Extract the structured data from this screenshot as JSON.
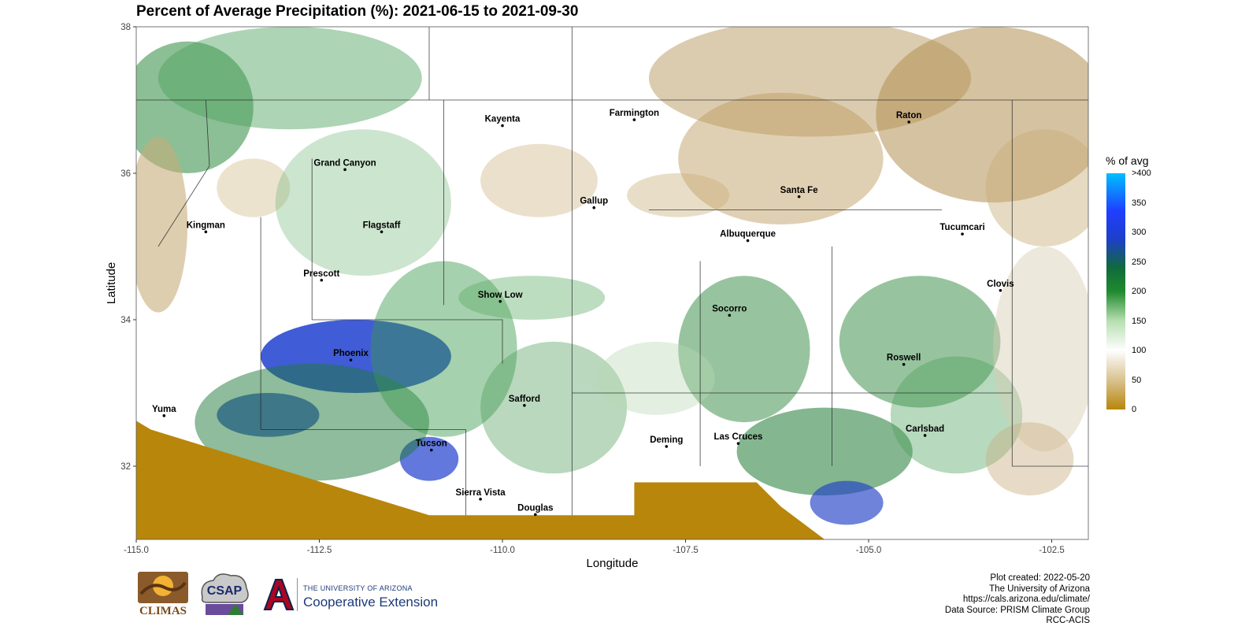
{
  "title": "Percent of Average Precipitation (%): 2021-06-15 to 2021-09-30",
  "chart_data": {
    "type": "heatmap",
    "title": "Percent of Average Precipitation (%): 2021-06-15 to 2021-09-30",
    "xlabel": "Longitude",
    "ylabel": "Latitude",
    "xlim": [
      -115.0,
      -102.0
    ],
    "ylim": [
      31.0,
      38.0
    ],
    "x_ticks": [
      "-115.0",
      "-112.5",
      "-110.0",
      "-107.5",
      "-105.0",
      "-102.5"
    ],
    "x_tick_values": [
      -115.0,
      -112.5,
      -110.0,
      -107.5,
      -105.0,
      -102.5
    ],
    "y_ticks": [
      "32",
      "34",
      "36",
      "38"
    ],
    "y_tick_values": [
      32,
      34,
      36,
      38
    ],
    "cities": [
      {
        "name": "Kayenta",
        "lon": -110.0,
        "lat": 36.65
      },
      {
        "name": "Farmington",
        "lon": -108.2,
        "lat": 36.73
      },
      {
        "name": "Raton",
        "lon": -104.45,
        "lat": 36.7
      },
      {
        "name": "Grand Canyon",
        "lon": -112.15,
        "lat": 36.05
      },
      {
        "name": "Santa Fe",
        "lon": -105.95,
        "lat": 35.68
      },
      {
        "name": "Gallup",
        "lon": -108.75,
        "lat": 35.53
      },
      {
        "name": "Kingman",
        "lon": -114.05,
        "lat": 35.2
      },
      {
        "name": "Flagstaff",
        "lon": -111.65,
        "lat": 35.2
      },
      {
        "name": "Albuquerque",
        "lon": -106.65,
        "lat": 35.08
      },
      {
        "name": "Tucumcari",
        "lon": -103.72,
        "lat": 35.17
      },
      {
        "name": "Prescott",
        "lon": -112.47,
        "lat": 34.54
      },
      {
        "name": "Clovis",
        "lon": -103.2,
        "lat": 34.4
      },
      {
        "name": "Show Low",
        "lon": -110.03,
        "lat": 34.25
      },
      {
        "name": "Socorro",
        "lon": -106.9,
        "lat": 34.06
      },
      {
        "name": "Phoenix",
        "lon": -112.07,
        "lat": 33.45
      },
      {
        "name": "Roswell",
        "lon": -104.52,
        "lat": 33.39
      },
      {
        "name": "Yuma",
        "lon": -114.62,
        "lat": 32.69
      },
      {
        "name": "Safford",
        "lon": -109.7,
        "lat": 32.83
      },
      {
        "name": "Carlsbad",
        "lon": -104.23,
        "lat": 32.42
      },
      {
        "name": "Tucson",
        "lon": -110.97,
        "lat": 32.22
      },
      {
        "name": "Las Cruces",
        "lon": -106.78,
        "lat": 32.31
      },
      {
        "name": "Deming",
        "lon": -107.76,
        "lat": 32.27
      },
      {
        "name": "Sierra Vista",
        "lon": -110.3,
        "lat": 31.55
      },
      {
        "name": "Douglas",
        "lon": -109.55,
        "lat": 31.34
      }
    ],
    "legend": {
      "title": "% of avg",
      "labels": [
        ">400",
        "350",
        "300",
        "250",
        "200",
        "150",
        "100",
        "50",
        "0"
      ],
      "values": [
        400,
        350,
        300,
        250,
        200,
        150,
        100,
        50,
        0
      ],
      "range": [
        0,
        400
      ]
    },
    "colors": {
      "dry": "#a57a1e",
      "normal": "#ffffff",
      "wet": "#1f8a2e",
      "very_wet": "#1f3fd0",
      "max": "#00bfff",
      "no_data": "#b8860b"
    }
  },
  "logos": {
    "climas": "CLIMAS",
    "csap": "CSAP",
    "ua_small": "THE UNIVERSITY OF ARIZONA",
    "ua_big": "Cooperative Extension"
  },
  "credits": [
    "Plot created: 2022-05-20",
    "The University of Arizona",
    "https://cals.arizona.edu/climate/",
    "Data Source: PRISM Climate Group",
    "RCC-ACIS"
  ]
}
